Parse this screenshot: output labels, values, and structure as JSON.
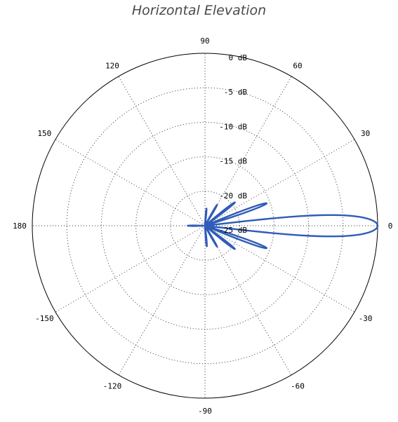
{
  "title": "Horizontal Elevation",
  "chart_data": {
    "type": "polar",
    "title": "Horizontal Elevation",
    "radial_unit": "dB",
    "radial_range": [
      -25,
      0
    ],
    "radial_ticks": [
      {
        "value": 0,
        "label": "0 dB"
      },
      {
        "value": -5,
        "label": "-5 dB"
      },
      {
        "value": -10,
        "label": "-10 dB"
      },
      {
        "value": -15,
        "label": "-15 dB"
      },
      {
        "value": -20,
        "label": "-20 dB"
      },
      {
        "value": -25,
        "label": "-25 dB"
      }
    ],
    "angle_ticks": [
      {
        "value": 0,
        "label": "0"
      },
      {
        "value": 30,
        "label": "30"
      },
      {
        "value": 60,
        "label": "60"
      },
      {
        "value": 90,
        "label": "90"
      },
      {
        "value": 120,
        "label": "120"
      },
      {
        "value": 150,
        "label": "150"
      },
      {
        "value": 180,
        "label": "180"
      },
      {
        "value": -150,
        "label": "-150"
      },
      {
        "value": -120,
        "label": "-120"
      },
      {
        "value": -90,
        "label": "-90"
      },
      {
        "value": -60,
        "label": "-60"
      },
      {
        "value": -30,
        "label": "-30"
      }
    ],
    "grid": true,
    "color": "#2f5cb8",
    "lobes": [
      {
        "center_deg": 0,
        "peak_db": 0,
        "half_width_deg": 7
      },
      {
        "center_deg": 20,
        "peak_db": -15.5,
        "half_width_deg": 3.5
      },
      {
        "center_deg": -20,
        "peak_db": -15.5,
        "half_width_deg": 3.5
      },
      {
        "center_deg": 38,
        "peak_db": -19.5,
        "half_width_deg": 4
      },
      {
        "center_deg": -38,
        "peak_db": -19.5,
        "half_width_deg": 4
      },
      {
        "center_deg": 60,
        "peak_db": -21.5,
        "half_width_deg": 4
      },
      {
        "center_deg": -60,
        "peak_db": -21.5,
        "half_width_deg": 4
      },
      {
        "center_deg": 85,
        "peak_db": -22.5,
        "half_width_deg": 5
      },
      {
        "center_deg": -85,
        "peak_db": -22,
        "half_width_deg": 5
      },
      {
        "center_deg": 180,
        "peak_db": -22.5,
        "half_width_deg": 5
      }
    ]
  }
}
